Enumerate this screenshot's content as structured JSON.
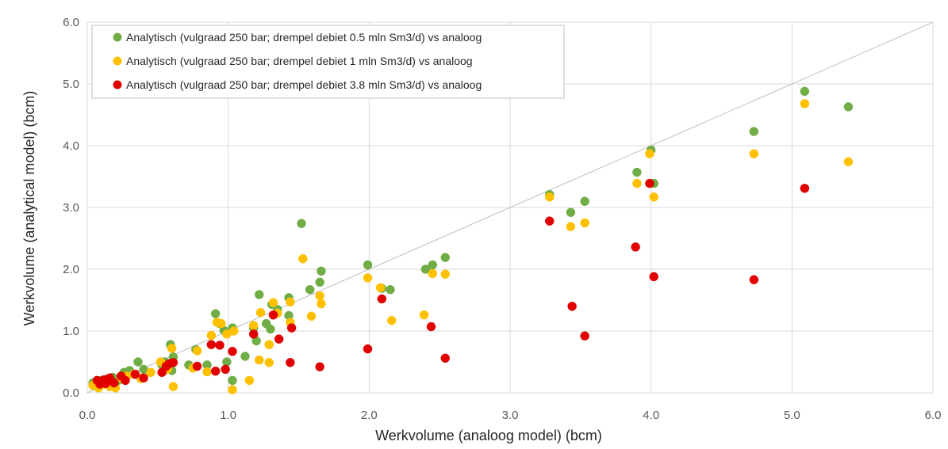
{
  "chart_data": {
    "type": "scatter",
    "title": "",
    "xlabel": "Werkvolume (analoog model) (bcm)",
    "ylabel": "Werkvolume (analytical model) (bcm)",
    "xlim": [
      0,
      6
    ],
    "ylim": [
      0,
      6
    ],
    "x_ticks": [
      "0.0",
      "1.0",
      "2.0",
      "3.0",
      "4.0",
      "5.0",
      "6.0"
    ],
    "y_ticks": [
      "0.0",
      "1.0",
      "2.0",
      "3.0",
      "4.0",
      "5.0",
      "6.0"
    ],
    "grid": true,
    "legend_position": "top-left",
    "reference_line": {
      "from": [
        0,
        0
      ],
      "to": [
        6,
        6
      ],
      "color": "#bfbfbf"
    },
    "series": [
      {
        "name": "Analytisch (vulgraad 250 bar; drempel debiet 0.5 mln Sm3/d) vs analoog",
        "color": "#70ad47",
        "points": [
          [
            0.04,
            0.16
          ],
          [
            0.07,
            0.12
          ],
          [
            0.1,
            0.2
          ],
          [
            0.14,
            0.22
          ],
          [
            0.18,
            0.25
          ],
          [
            0.22,
            0.2
          ],
          [
            0.26,
            0.33
          ],
          [
            0.3,
            0.36
          ],
          [
            0.36,
            0.5
          ],
          [
            0.4,
            0.38
          ],
          [
            0.53,
            0.45
          ],
          [
            0.55,
            0.5
          ],
          [
            0.59,
            0.78
          ],
          [
            0.61,
            0.58
          ],
          [
            0.6,
            0.36
          ],
          [
            0.72,
            0.45
          ],
          [
            0.77,
            0.7
          ],
          [
            0.85,
            0.45
          ],
          [
            0.91,
            1.28
          ],
          [
            0.94,
            1.12
          ],
          [
            0.97,
            1.01
          ],
          [
            0.99,
            0.5
          ],
          [
            1.03,
            1.05
          ],
          [
            1.03,
            0.2
          ],
          [
            1.12,
            0.59
          ],
          [
            1.18,
            1.05
          ],
          [
            1.2,
            0.84
          ],
          [
            1.22,
            1.59
          ],
          [
            1.27,
            1.12
          ],
          [
            1.31,
            1.43
          ],
          [
            1.3,
            1.03
          ],
          [
            1.35,
            1.35
          ],
          [
            1.43,
            1.54
          ],
          [
            1.43,
            1.25
          ],
          [
            1.52,
            2.74
          ],
          [
            1.58,
            1.67
          ],
          [
            1.65,
            1.79
          ],
          [
            1.66,
            1.97
          ],
          [
            1.99,
            2.07
          ],
          [
            2.09,
            1.69
          ],
          [
            2.15,
            1.67
          ],
          [
            2.4,
            2.0
          ],
          [
            2.45,
            2.07
          ],
          [
            2.54,
            2.19
          ],
          [
            3.28,
            3.21
          ],
          [
            3.43,
            2.92
          ],
          [
            3.53,
            3.1
          ],
          [
            3.9,
            3.57
          ],
          [
            4.0,
            3.93
          ],
          [
            4.02,
            3.39
          ],
          [
            4.73,
            4.23
          ],
          [
            5.09,
            4.88
          ],
          [
            5.4,
            4.63
          ]
        ]
      },
      {
        "name": "Analytisch (vulgraad 250 bar; drempel debiet 1 mln Sm3/d) vs analoog",
        "color": "#ffc000",
        "points": [
          [
            0.04,
            0.12
          ],
          [
            0.08,
            0.08
          ],
          [
            0.12,
            0.14
          ],
          [
            0.16,
            0.1
          ],
          [
            0.2,
            0.08
          ],
          [
            0.24,
            0.24
          ],
          [
            0.28,
            0.27
          ],
          [
            0.33,
            0.3
          ],
          [
            0.38,
            0.23
          ],
          [
            0.45,
            0.33
          ],
          [
            0.52,
            0.5
          ],
          [
            0.57,
            0.38
          ],
          [
            0.6,
            0.72
          ],
          [
            0.61,
            0.1
          ],
          [
            0.75,
            0.4
          ],
          [
            0.78,
            0.68
          ],
          [
            0.85,
            0.34
          ],
          [
            0.88,
            0.93
          ],
          [
            0.92,
            1.14
          ],
          [
            0.95,
            1.12
          ],
          [
            0.99,
            0.95
          ],
          [
            1.03,
            0.05
          ],
          [
            1.04,
            1.0
          ],
          [
            1.15,
            0.2
          ],
          [
            1.18,
            1.09
          ],
          [
            1.22,
            0.53
          ],
          [
            1.23,
            1.3
          ],
          [
            1.29,
            0.78
          ],
          [
            1.29,
            0.49
          ],
          [
            1.32,
            1.46
          ],
          [
            1.35,
            1.29
          ],
          [
            1.44,
            1.47
          ],
          [
            1.44,
            1.14
          ],
          [
            1.53,
            2.17
          ],
          [
            1.59,
            1.24
          ],
          [
            1.65,
            1.57
          ],
          [
            1.66,
            1.44
          ],
          [
            1.99,
            1.86
          ],
          [
            2.08,
            1.7
          ],
          [
            2.16,
            1.17
          ],
          [
            2.39,
            1.26
          ],
          [
            2.45,
            1.93
          ],
          [
            2.54,
            1.92
          ],
          [
            3.28,
            3.17
          ],
          [
            3.43,
            2.69
          ],
          [
            3.53,
            2.75
          ],
          [
            3.9,
            3.39
          ],
          [
            3.99,
            3.87
          ],
          [
            4.02,
            3.17
          ],
          [
            4.73,
            3.87
          ],
          [
            5.09,
            4.68
          ],
          [
            5.4,
            3.74
          ]
        ]
      },
      {
        "name": "Analytisch (vulgraad 250 bar; drempel debiet 3.8 mln Sm3/d) vs analoog",
        "color": "#e00000",
        "points": [
          [
            0.07,
            0.2
          ],
          [
            0.09,
            0.14
          ],
          [
            0.12,
            0.21
          ],
          [
            0.13,
            0.15
          ],
          [
            0.16,
            0.24
          ],
          [
            0.19,
            0.16
          ],
          [
            0.24,
            0.27
          ],
          [
            0.27,
            0.2
          ],
          [
            0.34,
            0.3
          ],
          [
            0.4,
            0.24
          ],
          [
            0.53,
            0.33
          ],
          [
            0.56,
            0.43
          ],
          [
            0.58,
            0.47
          ],
          [
            0.61,
            0.49
          ],
          [
            0.78,
            0.43
          ],
          [
            0.88,
            0.78
          ],
          [
            0.91,
            0.35
          ],
          [
            0.94,
            0.77
          ],
          [
            0.98,
            0.38
          ],
          [
            1.03,
            0.67
          ],
          [
            1.18,
            0.95
          ],
          [
            1.32,
            1.26
          ],
          [
            1.36,
            0.87
          ],
          [
            1.44,
            0.49
          ],
          [
            1.45,
            1.05
          ],
          [
            1.65,
            0.42
          ],
          [
            1.99,
            0.71
          ],
          [
            2.09,
            1.52
          ],
          [
            2.44,
            1.07
          ],
          [
            2.54,
            0.56
          ],
          [
            3.28,
            2.78
          ],
          [
            3.44,
            1.4
          ],
          [
            3.53,
            0.92
          ],
          [
            3.89,
            2.36
          ],
          [
            3.99,
            3.39
          ],
          [
            4.02,
            1.88
          ],
          [
            4.73,
            1.83
          ],
          [
            5.09,
            3.31
          ]
        ]
      }
    ]
  }
}
